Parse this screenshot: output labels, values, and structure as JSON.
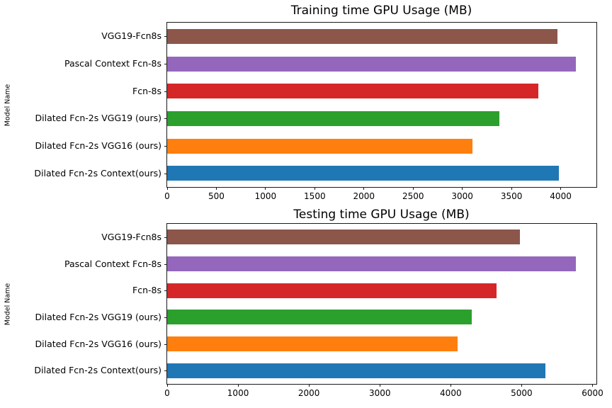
{
  "figure": {
    "background": "#ffffff",
    "text_color": "#000000",
    "spine_color": "#1a1a1a"
  },
  "chart_data": [
    {
      "type": "bar",
      "orientation": "horizontal",
      "title": "Training time GPU Usage (MB)",
      "xlabel": "",
      "ylabel": "Model Name",
      "grid": false,
      "legend": null,
      "categories": [
        "VGG19-Fcn8s",
        "Pascal Context Fcn-8s",
        "Fcn-8s",
        "Dilated Fcn-2s VGG19 (ours)",
        "Dilated Fcn-2s VGG16 (ours)",
        "Dilated Fcn-2s Context(ours)"
      ],
      "values": [
        3965,
        4155,
        3770,
        3375,
        3105,
        3985
      ],
      "bar_colors": [
        "#8c564b",
        "#9467bd",
        "#d62728",
        "#2ca02c",
        "#ff7f0e",
        "#1f77b4"
      ],
      "xticks": [
        0,
        500,
        1000,
        1500,
        2000,
        2500,
        3000,
        3500,
        4000
      ],
      "xlim": [
        0,
        4363
      ]
    },
    {
      "type": "bar",
      "orientation": "horizontal",
      "title": "Testing time GPU Usage (MB)",
      "xlabel": "",
      "ylabel": "Model Name",
      "grid": false,
      "legend": null,
      "categories": [
        "VGG19-Fcn8s",
        "Pascal Context Fcn-8s",
        "Fcn-8s",
        "Dilated Fcn-2s VGG19 (ours)",
        "Dilated Fcn-2s VGG16 (ours)",
        "Dilated Fcn-2s Context(ours)"
      ],
      "values": [
        4980,
        5765,
        4650,
        4300,
        4095,
        5340
      ],
      "bar_colors": [
        "#8c564b",
        "#9467bd",
        "#d62728",
        "#2ca02c",
        "#ff7f0e",
        "#1f77b4"
      ],
      "xticks": [
        0,
        1000,
        2000,
        3000,
        4000,
        5000,
        6000
      ],
      "xlim": [
        0,
        6055
      ]
    }
  ]
}
